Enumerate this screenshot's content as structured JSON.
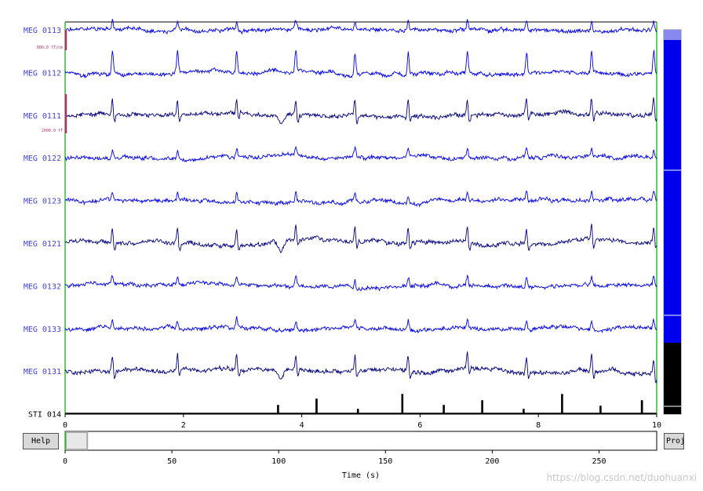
{
  "channels": [
    {
      "name": "MEG 0113",
      "color": "#0000ee",
      "type": "grad"
    },
    {
      "name": "MEG 0112",
      "color": "#0000ee",
      "type": "grad"
    },
    {
      "name": "MEG 0111",
      "color": "#000080",
      "type": "mag"
    },
    {
      "name": "MEG 0122",
      "color": "#0000ee",
      "type": "grad"
    },
    {
      "name": "MEG 0123",
      "color": "#0000ee",
      "type": "grad"
    },
    {
      "name": "MEG 0121",
      "color": "#000080",
      "type": "mag"
    },
    {
      "name": "MEG 0132",
      "color": "#0000ee",
      "type": "grad"
    },
    {
      "name": "MEG 0133",
      "color": "#0000ee",
      "type": "grad"
    },
    {
      "name": "MEG 0131",
      "color": "#000080",
      "type": "mag"
    },
    {
      "name": "STI 014",
      "color": "#000000",
      "type": "stim"
    }
  ],
  "scale_bars": [
    {
      "label": "800.0 fT/cm",
      "color": "#b0306b"
    },
    {
      "label": "2000.0 fT",
      "color": "#b0306b"
    }
  ],
  "time_axis": {
    "range": [
      0,
      10
    ],
    "ticks": [
      "0",
      "2",
      "4",
      "6",
      "8",
      "10"
    ]
  },
  "overview_axis": {
    "range": [
      0,
      277
    ],
    "ticks": [
      "0",
      "50",
      "100",
      "150",
      "200",
      "250"
    ],
    "xlabel": "Time (s)",
    "window": [
      0,
      10
    ]
  },
  "stim_events": [
    3.6,
    4.25,
    4.95,
    5.7,
    6.4,
    7.05,
    7.75,
    8.4,
    9.05,
    9.75
  ],
  "heartbeats": [
    0.8,
    1.9,
    2.9,
    3.9,
    4.9,
    5.8,
    6.8,
    7.8,
    8.9,
    9.95
  ],
  "buttons": {
    "help": "Help",
    "proj": "Proj"
  },
  "channel_scrollbar": {
    "colors": [
      "#0000ee",
      "#000000"
    ]
  },
  "watermark": "https://blog.csdn.net/duohuanxi"
}
